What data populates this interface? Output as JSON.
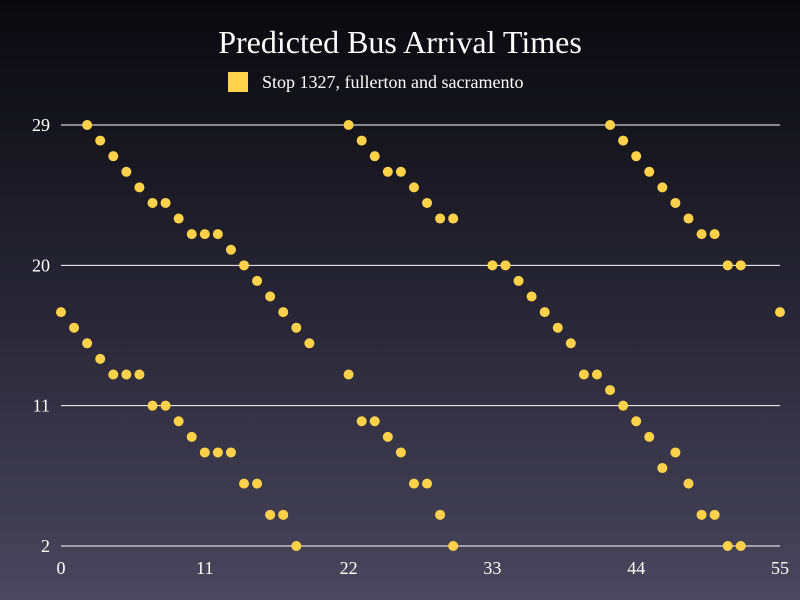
{
  "chart_data": {
    "type": "scatter",
    "title": "Predicted Bus Arrival Times",
    "xlabel": "",
    "ylabel": "",
    "xlim": [
      0,
      55
    ],
    "ylim": [
      2,
      29
    ],
    "x_ticks": [
      "0",
      "11",
      "22",
      "33",
      "44",
      "55"
    ],
    "y_ticks": [
      "2",
      "11",
      "20",
      "29"
    ],
    "grid": "horizontal",
    "legend": "top-center",
    "series": [
      {
        "name": "Stop 1327, fullerton and sacramento",
        "color": "#ffd24a",
        "points": [
          [
            0,
            17
          ],
          [
            1,
            16
          ],
          [
            2,
            15
          ],
          [
            3,
            14
          ],
          [
            4,
            13
          ],
          [
            5,
            13
          ],
          [
            6,
            13
          ],
          [
            7,
            11
          ],
          [
            8,
            11
          ],
          [
            9,
            10
          ],
          [
            10,
            9
          ],
          [
            11,
            8
          ],
          [
            12,
            8
          ],
          [
            13,
            8
          ],
          [
            14,
            6
          ],
          [
            15,
            6
          ],
          [
            16,
            4
          ],
          [
            17,
            4
          ],
          [
            18,
            2
          ],
          [
            2,
            29
          ],
          [
            3,
            28
          ],
          [
            4,
            27
          ],
          [
            5,
            26
          ],
          [
            6,
            25
          ],
          [
            7,
            24
          ],
          [
            8,
            24
          ],
          [
            9,
            23
          ],
          [
            10,
            22
          ],
          [
            11,
            22
          ],
          [
            12,
            22
          ],
          [
            13,
            21
          ],
          [
            14,
            20
          ],
          [
            15,
            19
          ],
          [
            16,
            18
          ],
          [
            17,
            17
          ],
          [
            18,
            16
          ],
          [
            19,
            15
          ],
          [
            22,
            13
          ],
          [
            23,
            10
          ],
          [
            24,
            10
          ],
          [
            25,
            9
          ],
          [
            26,
            8
          ],
          [
            27,
            6
          ],
          [
            28,
            6
          ],
          [
            29,
            4
          ],
          [
            30,
            2
          ],
          [
            22,
            29
          ],
          [
            23,
            28
          ],
          [
            24,
            27
          ],
          [
            25,
            26
          ],
          [
            26,
            26
          ],
          [
            27,
            25
          ],
          [
            28,
            24
          ],
          [
            29,
            23
          ],
          [
            30,
            23
          ],
          [
            33,
            20
          ],
          [
            34,
            20
          ],
          [
            35,
            19
          ],
          [
            36,
            18
          ],
          [
            37,
            17
          ],
          [
            38,
            16
          ],
          [
            39,
            15
          ],
          [
            40,
            13
          ],
          [
            41,
            13
          ],
          [
            42,
            12
          ],
          [
            43,
            11
          ],
          [
            44,
            10
          ],
          [
            45,
            9
          ],
          [
            46,
            7
          ],
          [
            47,
            8
          ],
          [
            48,
            6
          ],
          [
            49,
            4
          ],
          [
            50,
            4
          ],
          [
            51,
            2
          ],
          [
            52,
            2
          ],
          [
            42,
            29
          ],
          [
            43,
            28
          ],
          [
            44,
            27
          ],
          [
            45,
            26
          ],
          [
            46,
            25
          ],
          [
            47,
            24
          ],
          [
            48,
            23
          ],
          [
            49,
            22
          ],
          [
            50,
            22
          ],
          [
            51,
            20
          ],
          [
            52,
            20
          ],
          [
            55,
            17
          ]
        ]
      }
    ]
  }
}
